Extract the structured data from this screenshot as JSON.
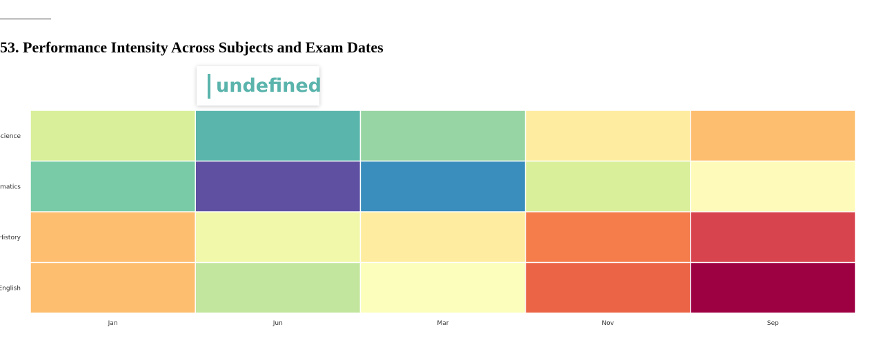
{
  "page": {
    "title": "53. Performance Intensity Across Subjects and Exam Dates"
  },
  "tooltip": {
    "value": "undefined",
    "accent_color": "#5ab4ac"
  },
  "chart_data": {
    "type": "heatmap",
    "title": "53. Performance Intensity Across Subjects and Exam Dates",
    "x_categories": [
      "Jan",
      "Jun",
      "Mar",
      "Nov",
      "Sep"
    ],
    "y_categories": [
      "Science",
      "Mathematics",
      "History",
      "English"
    ],
    "y_tick_labels_visible": [
      "Science",
      "matics",
      "History",
      "English"
    ],
    "colorscale": "Spectral",
    "legend": "none",
    "cells": [
      {
        "y": "Science",
        "x": "Jan",
        "color": "#d9ef9a"
      },
      {
        "y": "Science",
        "x": "Jun",
        "color": "#5ab6ac"
      },
      {
        "y": "Science",
        "x": "Mar",
        "color": "#98d5a4"
      },
      {
        "y": "Science",
        "x": "Nov",
        "color": "#feeda0"
      },
      {
        "y": "Science",
        "x": "Sep",
        "color": "#fdbe70"
      },
      {
        "y": "Mathematics",
        "x": "Jan",
        "color": "#78cba6"
      },
      {
        "y": "Mathematics",
        "x": "Jun",
        "color": "#5f50a2"
      },
      {
        "y": "Mathematics",
        "x": "Mar",
        "color": "#3a8ebd"
      },
      {
        "y": "Mathematics",
        "x": "Nov",
        "color": "#d9ef9a"
      },
      {
        "y": "Mathematics",
        "x": "Sep",
        "color": "#fefbba"
      },
      {
        "y": "History",
        "x": "Jan",
        "color": "#fdbe70"
      },
      {
        "y": "History",
        "x": "Jun",
        "color": "#f1f8aa"
      },
      {
        "y": "History",
        "x": "Mar",
        "color": "#feeda0"
      },
      {
        "y": "History",
        "x": "Nov",
        "color": "#f47d4b"
      },
      {
        "y": "History",
        "x": "Sep",
        "color": "#d8444e"
      },
      {
        "y": "English",
        "x": "Jan",
        "color": "#fdbe70"
      },
      {
        "y": "English",
        "x": "Jun",
        "color": "#c3e69f"
      },
      {
        "y": "English",
        "x": "Mar",
        "color": "#fcfebb"
      },
      {
        "y": "English",
        "x": "Nov",
        "color": "#ec6446"
      },
      {
        "y": "English",
        "x": "Sep",
        "color": "#9e0142"
      }
    ]
  }
}
